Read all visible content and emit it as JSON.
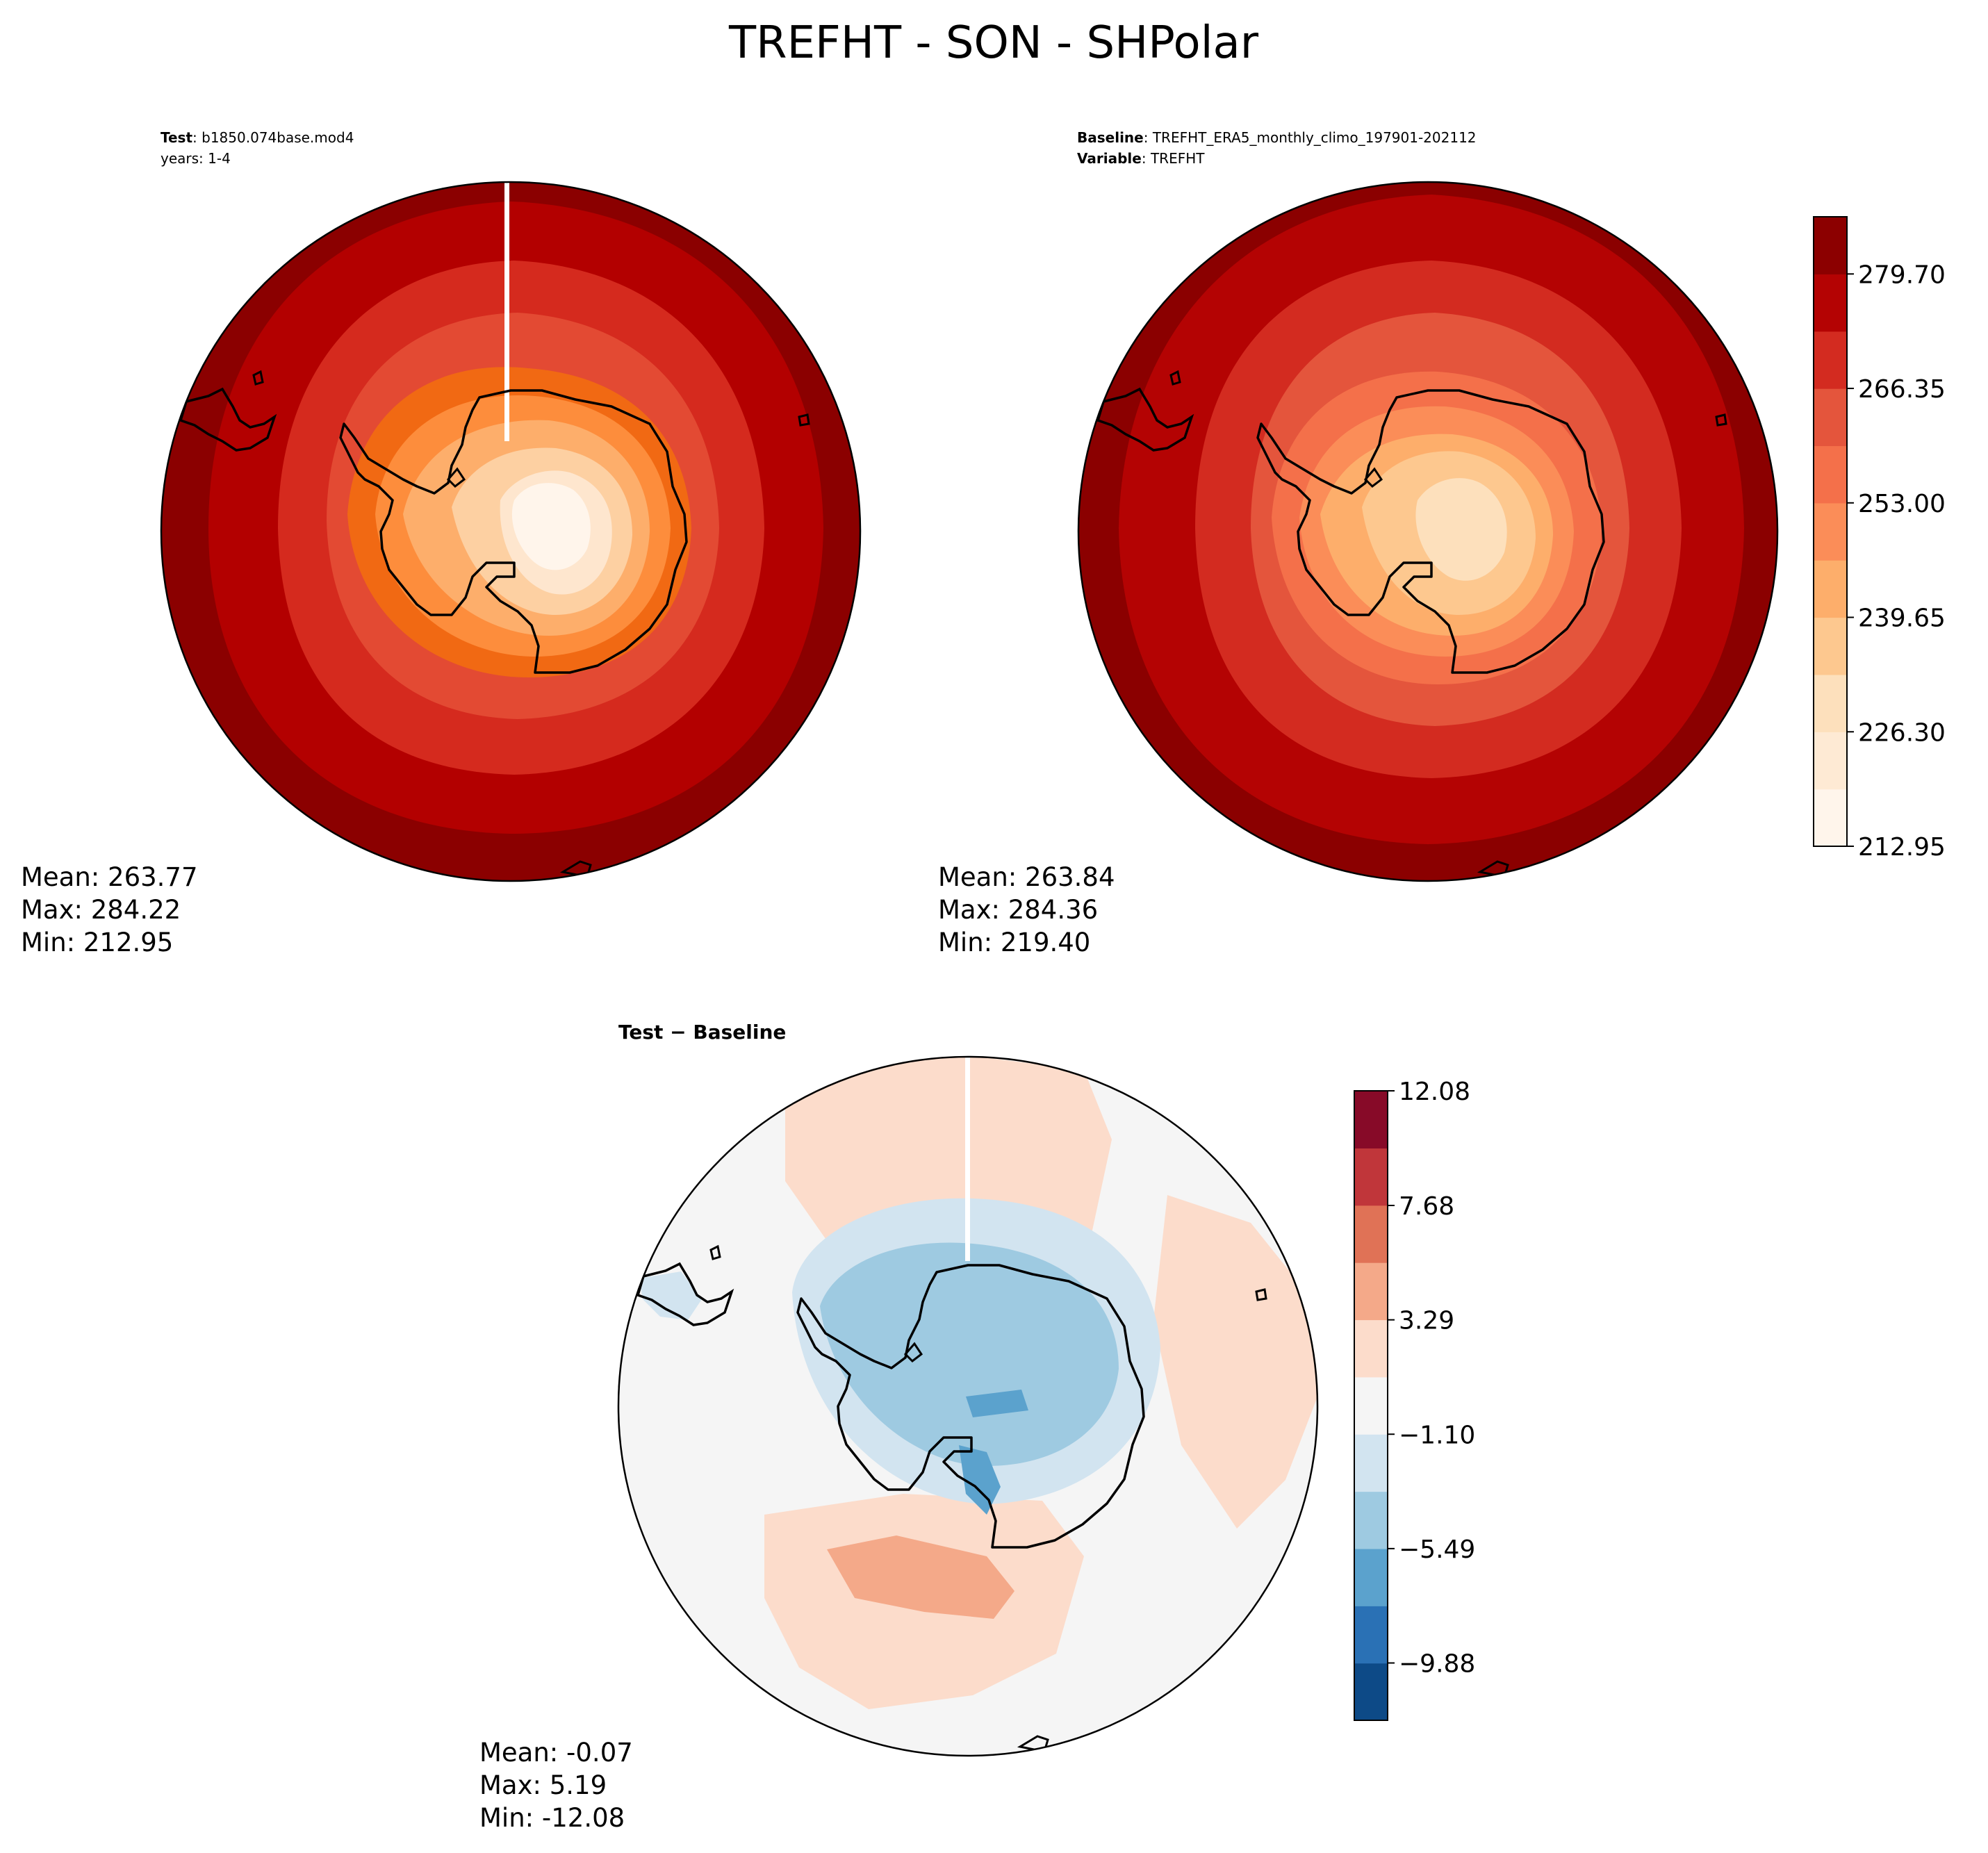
{
  "figure": {
    "title": "TREFHT - SON - SHPolar"
  },
  "chart_data": [
    {
      "type": "heatmap",
      "panel": "test",
      "header": {
        "label_bold": "Test",
        "label_value": "b1850.074base.mod4",
        "line2": "years: 1-4"
      },
      "projection": "south-polar-stereographic",
      "stats": {
        "mean": "Mean: 263.77",
        "max": "Max: 284.22",
        "min": "Min: 212.95"
      },
      "color_levels": [
        "#fff5eb",
        "#fee6ce",
        "#fdd0a2",
        "#fdae6b",
        "#fd8d3c",
        "#f16913",
        "#e34a33",
        "#d52a1e",
        "#b30000",
        "#8b0000"
      ]
    },
    {
      "type": "heatmap",
      "panel": "baseline",
      "header": {
        "label_bold": "Baseline",
        "label_value": "TREFHT_ERA5_monthly_climo_197901-202112",
        "line2_bold": "Variable",
        "line2_value": "TREFHT"
      },
      "projection": "south-polar-stereographic",
      "stats": {
        "mean": "Mean: 263.84",
        "max": "Max: 284.36",
        "min": "Min: 219.40"
      },
      "colorbar": {
        "range": [
          212.95,
          286.37
        ],
        "ticks": [
          212.95,
          226.3,
          239.65,
          253.0,
          266.35,
          279.7
        ],
        "tick_labels": [
          "212.95",
          "226.30",
          "239.65",
          "253.00",
          "266.35",
          "279.70"
        ],
        "levels": 11,
        "colors": [
          "#fff5eb",
          "#feead4",
          "#fde0bc",
          "#fdc88f",
          "#fdae6b",
          "#fb8d58",
          "#f4704a",
          "#e4553c",
          "#d32b20",
          "#b40303",
          "#8c0000"
        ]
      }
    },
    {
      "type": "heatmap",
      "panel": "difference",
      "header": {
        "label": "Test − Baseline"
      },
      "projection": "south-polar-stereographic",
      "stats": {
        "mean": "Mean: -0.07",
        "max": "Max:  5.19",
        "min": "Min: -12.08"
      },
      "colorbar": {
        "range": [
          -12.08,
          12.08
        ],
        "ticks": [
          -9.88,
          -5.49,
          -1.1,
          3.29,
          7.68,
          12.08
        ],
        "tick_labels": [
          "−9.88",
          "−5.49",
          "−1.10",
          "3.29",
          "7.68",
          "12.08"
        ],
        "levels": 11,
        "colors": [
          "#0d4a87",
          "#2a71b5",
          "#5ba2cd",
          "#9ecae1",
          "#d2e4f0",
          "#f5f5f5",
          "#fcdccb",
          "#f4a989",
          "#e07256",
          "#c0363a",
          "#870a28"
        ]
      }
    }
  ]
}
